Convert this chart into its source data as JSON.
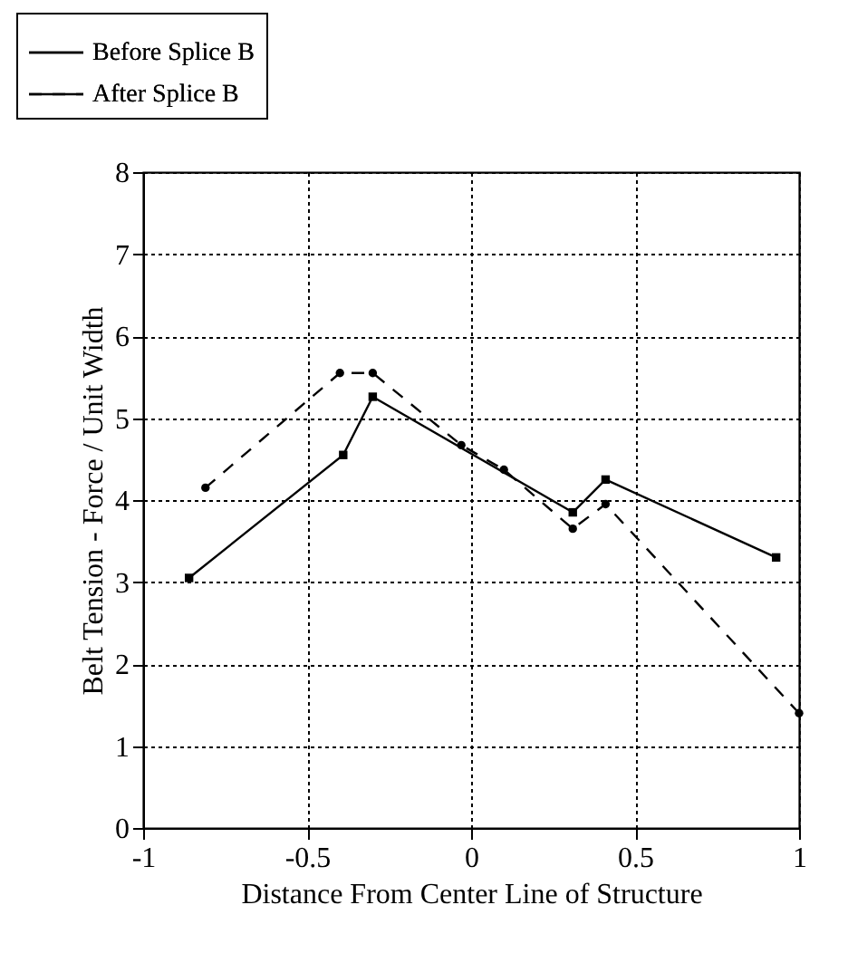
{
  "chart_data": {
    "type": "line",
    "xlabel": "Distance From Center Line of Structure",
    "ylabel": "Belt Tension - Force / Unit Width",
    "series": [
      {
        "name": "Before Splice B",
        "color": "#000000",
        "line_style": "solid",
        "marker": "square",
        "x": [
          -0.86,
          -0.39,
          -0.3,
          0.31,
          0.41,
          0.93
        ],
        "values": [
          3.05,
          4.55,
          5.26,
          3.85,
          4.25,
          3.3
        ]
      },
      {
        "name": "After Splice B",
        "color": "#000000",
        "line_style": "dashed",
        "marker": "circle",
        "x": [
          -0.81,
          -0.4,
          -0.3,
          -0.03,
          0.1,
          0.31,
          0.41,
          1.0
        ],
        "values": [
          4.15,
          5.55,
          5.55,
          4.67,
          4.37,
          3.65,
          3.95,
          1.4
        ]
      }
    ],
    "xlim": [
      -1,
      1
    ],
    "ylim": [
      0,
      8
    ],
    "xticks": [
      -1,
      -0.5,
      0,
      0.5,
      1
    ],
    "yticks": [
      0,
      1,
      2,
      3,
      4,
      5,
      6,
      7,
      8
    ],
    "grid": true,
    "legend": "top left"
  }
}
